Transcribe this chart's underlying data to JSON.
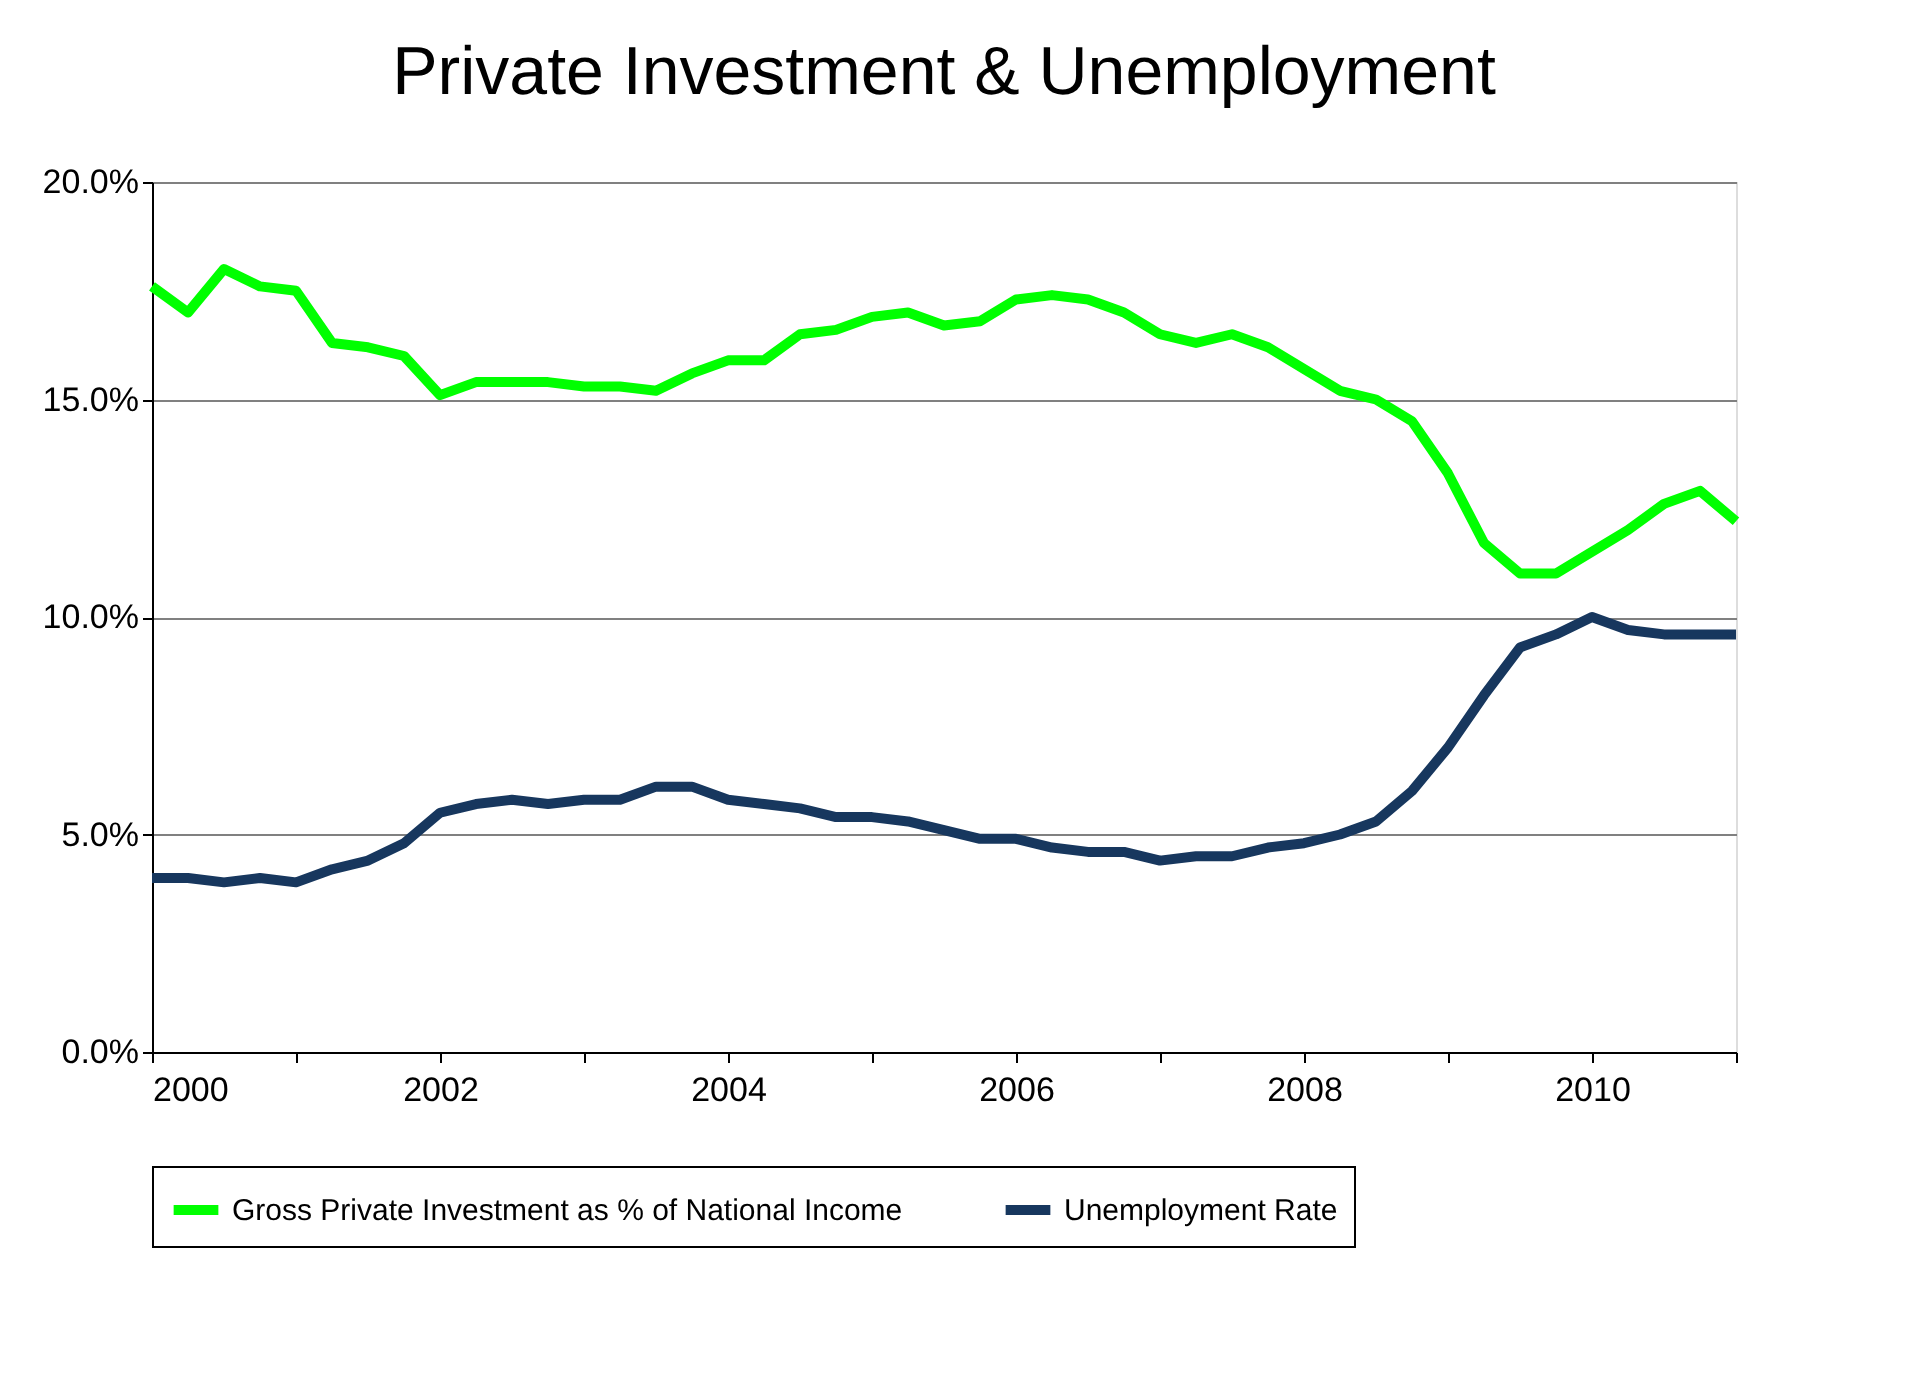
{
  "chart_data": {
    "type": "line",
    "title": "Private Investment & Unemployment",
    "x": [
      2000,
      2000.25,
      2000.5,
      2000.75,
      2001,
      2001.25,
      2001.5,
      2001.75,
      2002,
      2002.25,
      2002.5,
      2002.75,
      2003,
      2003.25,
      2003.5,
      2003.75,
      2004,
      2004.25,
      2004.5,
      2004.75,
      2005,
      2005.25,
      2005.5,
      2005.75,
      2006,
      2006.25,
      2006.5,
      2006.75,
      2007,
      2007.25,
      2007.5,
      2007.75,
      2008,
      2008.25,
      2008.5,
      2008.75,
      2009,
      2009.25,
      2009.5,
      2009.75,
      2010,
      2010.25,
      2010.5,
      2010.75,
      2011
    ],
    "series": [
      {
        "name": "Gross Private Investment as % of National Income",
        "color": "#00ff00",
        "values": [
          17.6,
          17.0,
          18.0,
          17.6,
          17.5,
          16.3,
          16.2,
          16.0,
          15.1,
          15.4,
          15.4,
          15.4,
          15.3,
          15.3,
          15.2,
          15.6,
          15.9,
          15.9,
          16.5,
          16.6,
          16.9,
          17.0,
          16.7,
          16.8,
          17.3,
          17.4,
          17.3,
          17.0,
          16.5,
          16.3,
          16.5,
          16.2,
          15.7,
          15.2,
          15.0,
          14.5,
          13.3,
          11.7,
          11.0,
          11.0,
          11.5,
          12.0,
          12.6,
          12.9,
          12.2
        ]
      },
      {
        "name": "Unemployment Rate",
        "color": "#17375e",
        "values": [
          4.0,
          4.0,
          3.9,
          4.0,
          3.9,
          4.2,
          4.4,
          4.8,
          5.5,
          5.7,
          5.8,
          5.7,
          5.8,
          5.8,
          6.1,
          6.1,
          5.8,
          5.7,
          5.6,
          5.4,
          5.4,
          5.3,
          5.1,
          4.9,
          4.9,
          4.7,
          4.6,
          4.6,
          4.4,
          4.5,
          4.5,
          4.7,
          4.8,
          5.0,
          5.3,
          6.0,
          7.0,
          8.2,
          9.3,
          9.6,
          10.0,
          9.7,
          9.6,
          9.6,
          9.6
        ]
      }
    ],
    "xlim": [
      2000,
      2011
    ],
    "xticks": [
      2000,
      {
        "value": 2001,
        "label": null
      },
      2002,
      {
        "value": 2003,
        "label": null
      },
      2004,
      {
        "value": 2005,
        "label": null
      },
      2006,
      {
        "value": 2007,
        "label": null
      },
      2008,
      {
        "value": 2009,
        "label": null
      },
      2010,
      {
        "value": 2011,
        "label": null
      }
    ],
    "ylim": [
      0,
      20
    ],
    "yticks": [
      {
        "value": 0,
        "label": "0.0%"
      },
      {
        "value": 5,
        "label": "5.0%"
      },
      {
        "value": 10,
        "label": "10.0%"
      },
      {
        "value": 15,
        "label": "15.0%"
      },
      {
        "value": 20,
        "label": "20.0%"
      }
    ],
    "grid": "y",
    "legend": "bottom",
    "marker": "none",
    "line_style": "solid"
  }
}
